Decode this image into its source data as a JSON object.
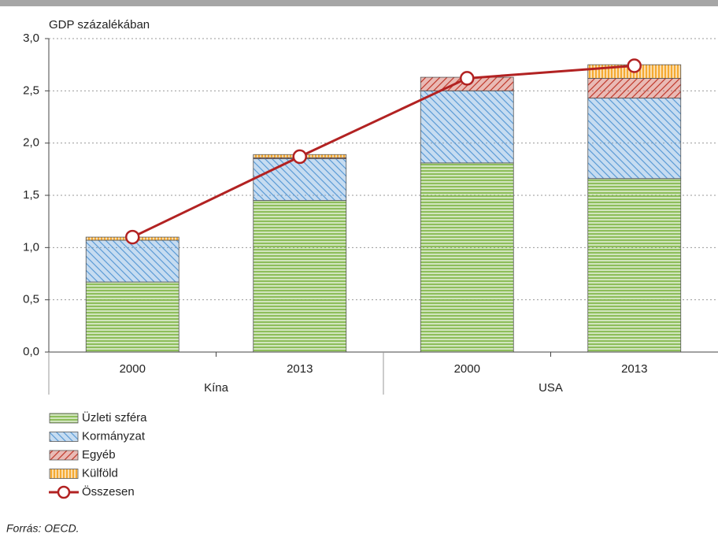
{
  "chart_data": {
    "type": "stacked_bar_line",
    "y_label": "GDP százalékában",
    "categories": [
      "2000",
      "2013",
      "2000",
      "2013"
    ],
    "groups": [
      "Kína",
      "USA"
    ],
    "series": [
      {
        "name": "Üzleti szféra",
        "color": "#7cb342",
        "hatch": "horizontal",
        "values": [
          0.67,
          1.45,
          1.81,
          1.66
        ]
      },
      {
        "name": "Kormányzat",
        "color": "#5b9bd5",
        "hatch": "diagonal",
        "values": [
          0.4,
          0.4,
          0.69,
          0.77
        ]
      },
      {
        "name": "Egyéb",
        "color": "#c0392b",
        "hatch": "antidiagonal",
        "values": [
          0.0,
          0.01,
          0.13,
          0.19
        ]
      },
      {
        "name": "Külföld",
        "color": "#f39c12",
        "hatch": "vertical",
        "values": [
          0.03,
          0.03,
          0.0,
          0.13
        ]
      },
      {
        "name": "Összesen",
        "color": "#b22222",
        "kind": "line",
        "values": [
          1.1,
          1.87,
          2.62,
          2.74
        ]
      }
    ],
    "ylim": [
      0,
      3
    ],
    "yticks": [
      {
        "value": 0,
        "label": "0,0"
      },
      {
        "value": 0.5,
        "label": "0,5"
      },
      {
        "value": 1,
        "label": "1,0"
      },
      {
        "value": 1.5,
        "label": "1,5"
      },
      {
        "value": 2,
        "label": "2,0"
      },
      {
        "value": 2.5,
        "label": "2,5"
      },
      {
        "value": 3,
        "label": "3,0"
      }
    ],
    "grid": true,
    "note": "Forrás: OECD."
  }
}
